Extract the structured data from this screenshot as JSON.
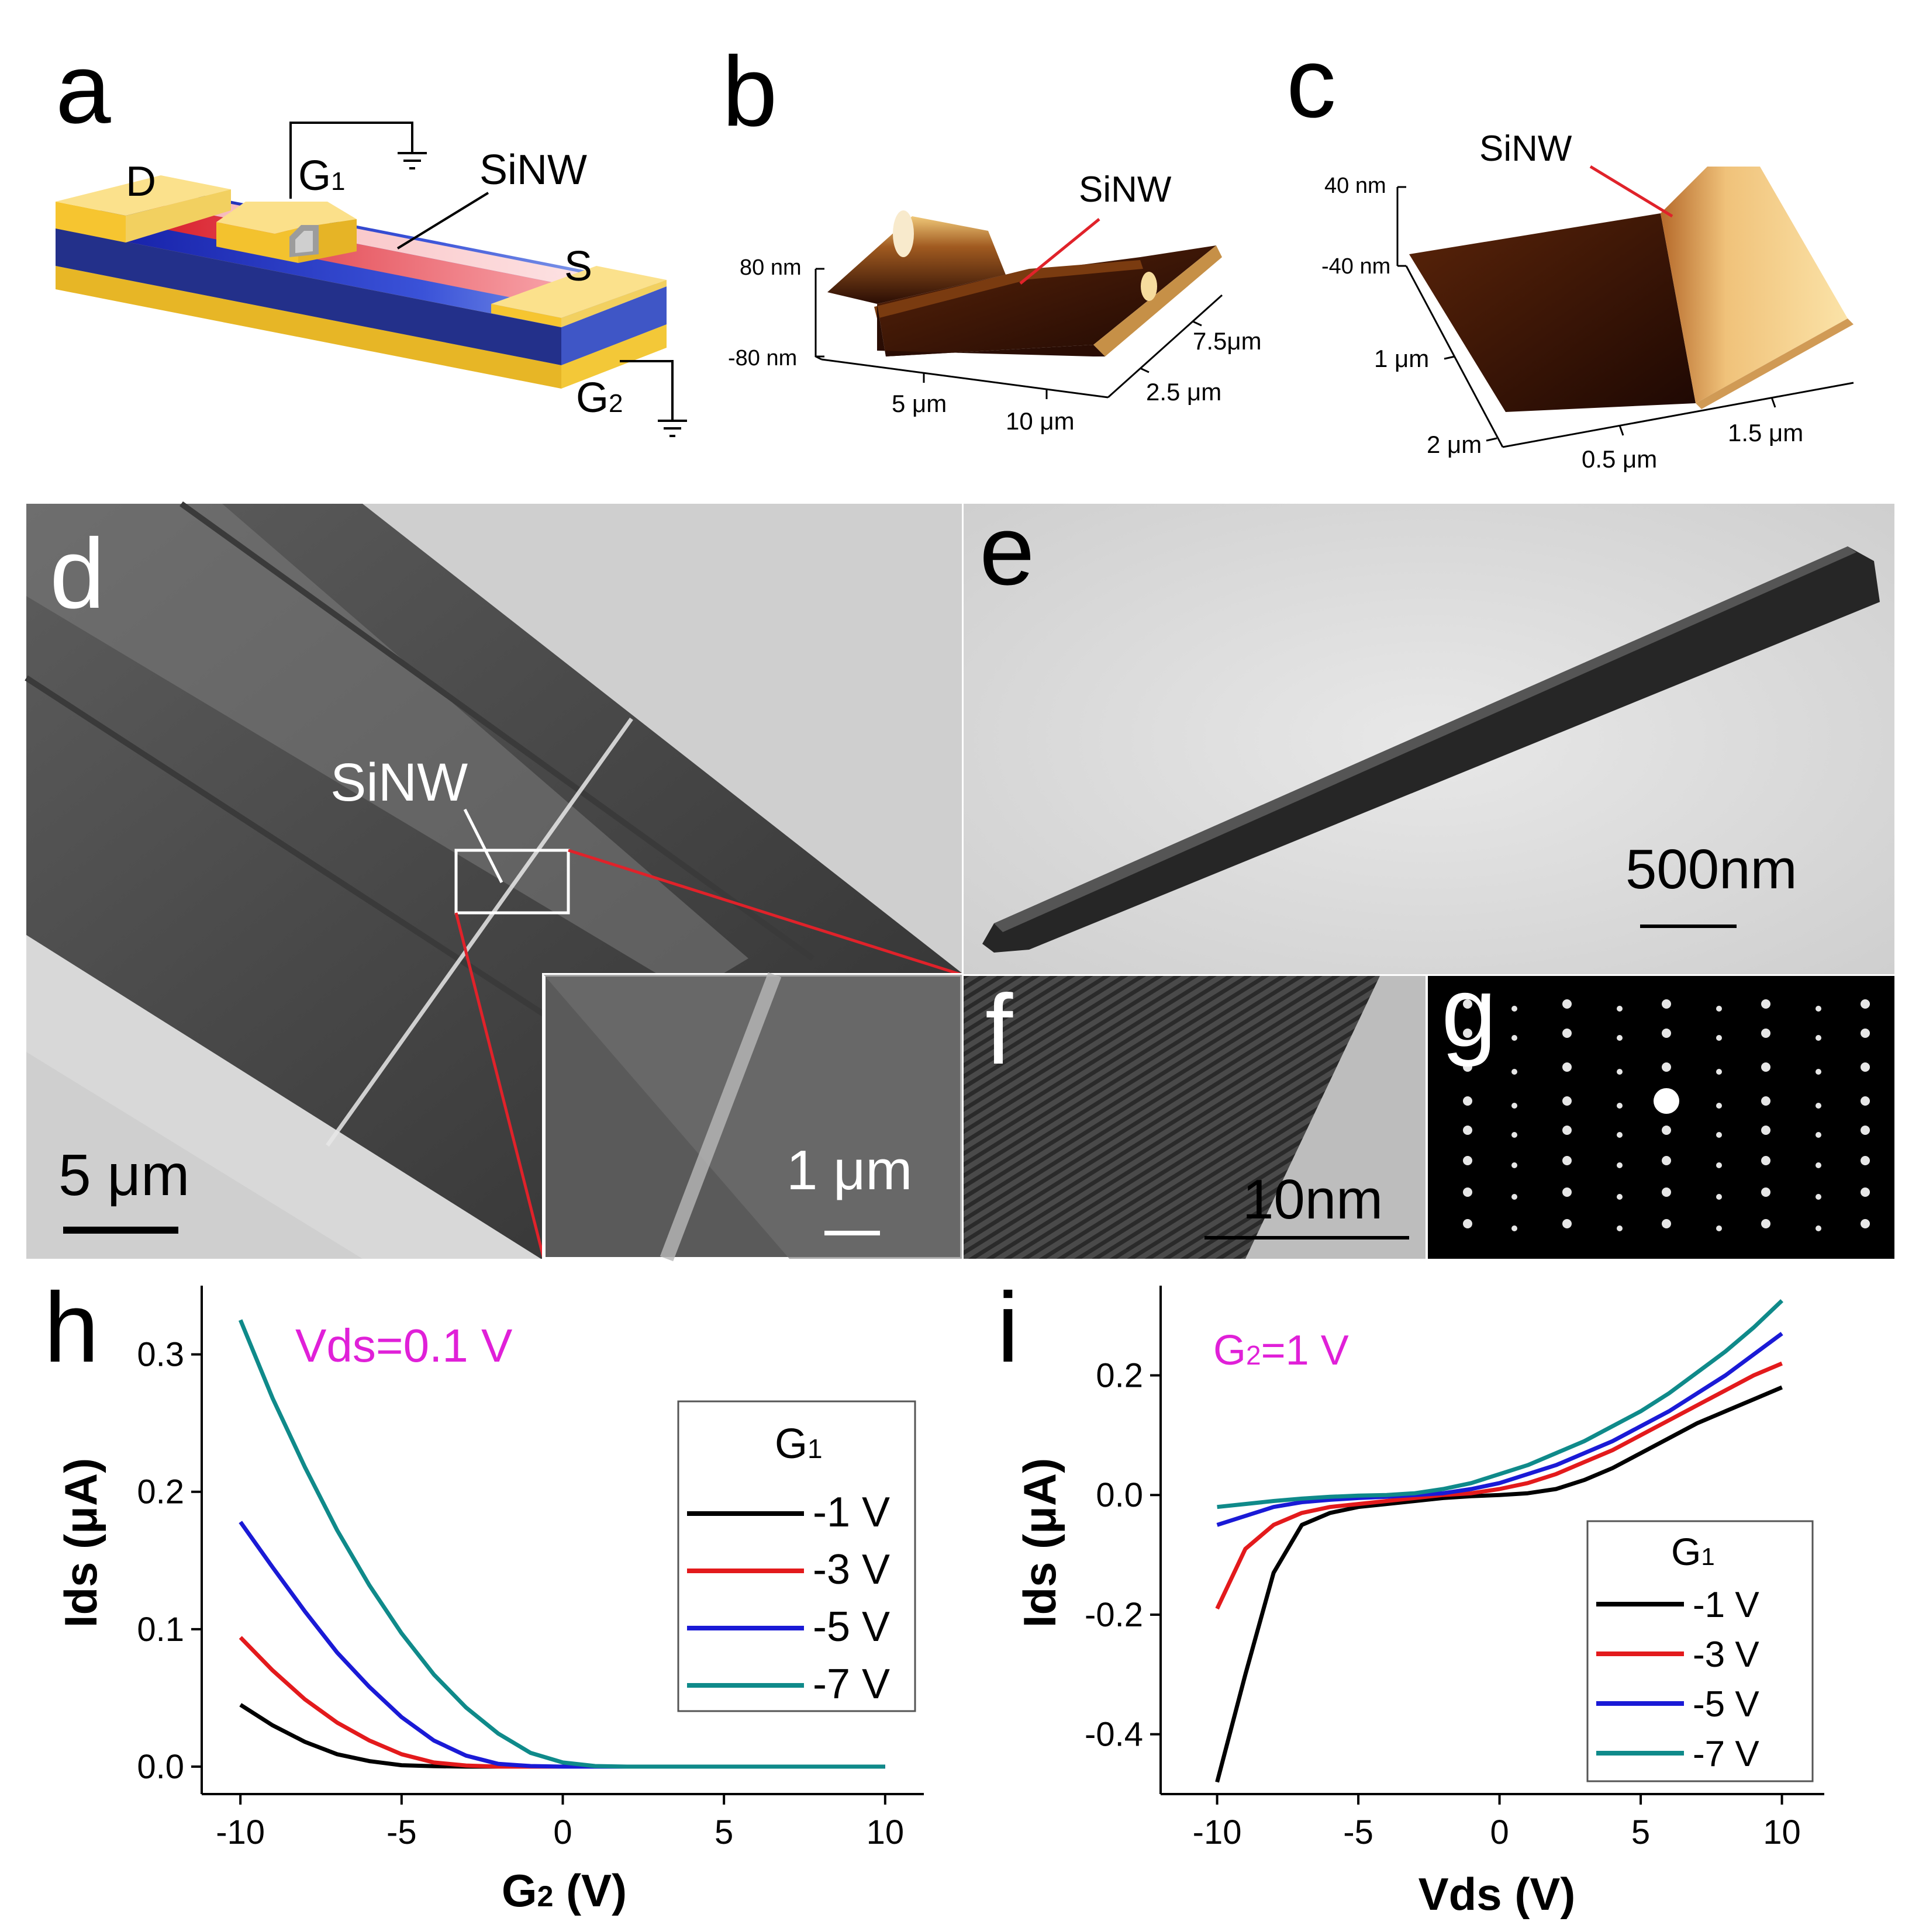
{
  "panel_labels": {
    "a": "a",
    "b": "b",
    "c": "c",
    "d": "d",
    "e": "e",
    "f": "f",
    "g": "g",
    "h": "h",
    "i": "i"
  },
  "panel_a": {
    "drain": "D",
    "gate1": "G",
    "gate1_sub": "1",
    "nanowire": "SiNW",
    "source": "S",
    "gate2": "G",
    "gate2_sub": "2"
  },
  "panel_b": {
    "nanowire": "SiNW",
    "z_top": "80 nm",
    "z_bottom": "-80 nm",
    "x_tick_1": "5 μm",
    "x_tick_2": "10 μm",
    "y_tick_1": "7.5μm",
    "y_tick_2": "2.5 μm"
  },
  "panel_c": {
    "nanowire": "SiNW",
    "z_top": "40 nm",
    "z_bottom": "-40 nm",
    "y_tick_1": "1 μm",
    "y_tick_2": "2 μm",
    "x_tick_1": "0.5 μm",
    "x_tick_2": "1.5 μm"
  },
  "panel_d": {
    "nanowire": "SiNW",
    "scale": "5 μm",
    "inset_scale": "1 μm"
  },
  "panel_e": {
    "scale": "500nm"
  },
  "panel_f": {
    "scale": "10nm"
  },
  "chart_data": [
    {
      "panel": "h",
      "type": "line",
      "annotation": "Vds=0.1 V",
      "xlabel": "G",
      "xlabel_sub": "2",
      "xlabel_unit": " (V)",
      "ylabel": "Ids (μA)",
      "xlim": [
        -11.2,
        11.2
      ],
      "ylim": [
        -0.02,
        0.35
      ],
      "xticks": [
        -10,
        -5,
        0,
        5,
        10
      ],
      "xtick_labels": [
        "-10",
        "-5",
        "0",
        "5",
        "10"
      ],
      "yticks": [
        0.0,
        0.1,
        0.2,
        0.3
      ],
      "ytick_labels": [
        "0.0",
        "0.1",
        "0.2",
        "0.3"
      ],
      "legend_title": "G",
      "legend_title_sub": "1",
      "legend_position": "upper-right",
      "x": [
        -10,
        -9,
        -8,
        -7,
        -6,
        -5,
        -4,
        -3,
        -2,
        -1,
        0,
        1,
        2,
        3,
        4,
        5,
        6,
        7,
        8,
        9,
        10
      ],
      "series": [
        {
          "name": "-1 V",
          "color": "#000000",
          "values": [
            0.045,
            0.03,
            0.018,
            0.009,
            0.004,
            0.001,
            0.0003,
            0,
            0,
            0,
            0,
            0,
            0,
            0,
            0,
            0,
            0,
            0,
            0,
            0,
            0
          ]
        },
        {
          "name": "-3 V",
          "color": "#e31a1c",
          "values": [
            0.094,
            0.07,
            0.049,
            0.032,
            0.019,
            0.009,
            0.003,
            0.0008,
            0,
            0,
            0,
            0,
            0,
            0,
            0,
            0,
            0,
            0,
            0,
            0,
            0
          ]
        },
        {
          "name": "-5 V",
          "color": "#1a1ad6",
          "values": [
            0.178,
            0.145,
            0.113,
            0.083,
            0.058,
            0.036,
            0.019,
            0.008,
            0.002,
            0.0004,
            0,
            0,
            0,
            0,
            0,
            0,
            0,
            0,
            0,
            0,
            0
          ]
        },
        {
          "name": "-7 V",
          "color": "#0f8a8a",
          "values": [
            0.325,
            0.268,
            0.218,
            0.172,
            0.132,
            0.097,
            0.067,
            0.043,
            0.024,
            0.01,
            0.003,
            0.0004,
            0,
            0,
            0,
            0,
            0,
            0,
            0,
            0,
            0
          ]
        }
      ]
    },
    {
      "panel": "i",
      "type": "line",
      "annotation": "G",
      "annotation_sub": "2",
      "annotation_rest": "=1 V",
      "xlabel": "Vds (V)",
      "ylabel": "Ids (μA)",
      "xlim": [
        -12,
        11.5
      ],
      "ylim": [
        -0.5,
        0.35
      ],
      "xticks": [
        -10,
        -5,
        0,
        5,
        10
      ],
      "xtick_labels": [
        "-10",
        "-5",
        "0",
        "5",
        "10"
      ],
      "yticks": [
        -0.4,
        -0.2,
        0.0,
        0.2
      ],
      "ytick_labels": [
        "-0.4",
        "-0.2",
        "0.0",
        "0.2"
      ],
      "legend_title": "G",
      "legend_title_sub": "1",
      "legend_position": "lower-right",
      "x": [
        -10,
        -9,
        -8,
        -7,
        -6,
        -5,
        -4,
        -3,
        -2,
        -1,
        0,
        1,
        2,
        3,
        4,
        5,
        6,
        7,
        8,
        9,
        10
      ],
      "series": [
        {
          "name": "-1 V",
          "color": "#000000",
          "values": [
            -0.48,
            -0.3,
            -0.13,
            -0.05,
            -0.03,
            -0.02,
            -0.015,
            -0.01,
            -0.005,
            -0.002,
            0,
            0.003,
            0.01,
            0.025,
            0.045,
            0.07,
            0.095,
            0.12,
            0.14,
            0.16,
            0.18
          ]
        },
        {
          "name": "-3 V",
          "color": "#e31a1c",
          "values": [
            -0.19,
            -0.09,
            -0.05,
            -0.03,
            -0.02,
            -0.015,
            -0.01,
            -0.005,
            0,
            0.003,
            0.01,
            0.02,
            0.035,
            0.055,
            0.075,
            0.1,
            0.125,
            0.15,
            0.175,
            0.2,
            0.22
          ]
        },
        {
          "name": "-5 V",
          "color": "#1a1ad6",
          "values": [
            -0.05,
            -0.035,
            -0.02,
            -0.012,
            -0.008,
            -0.005,
            -0.003,
            0,
            0.003,
            0.01,
            0.02,
            0.035,
            0.05,
            0.07,
            0.09,
            0.115,
            0.14,
            0.17,
            0.2,
            0.235,
            0.27
          ]
        },
        {
          "name": "-7 V",
          "color": "#0f8a8a",
          "values": [
            -0.02,
            -0.015,
            -0.01,
            -0.006,
            -0.003,
            -0.001,
            0,
            0.003,
            0.01,
            0.02,
            0.035,
            0.05,
            0.07,
            0.09,
            0.115,
            0.14,
            0.17,
            0.205,
            0.24,
            0.28,
            0.325
          ]
        }
      ]
    }
  ]
}
